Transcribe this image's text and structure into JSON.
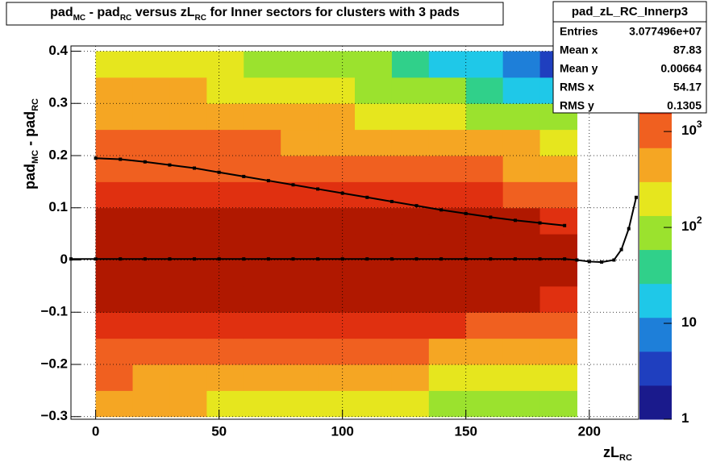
{
  "chart_data": {
    "type": "heatmap",
    "title_parts": [
      "pad",
      "MC",
      " - pad",
      "RC",
      " versus zL",
      "RC",
      " for Inner sectors for clusters with 3 pads"
    ],
    "ylabel_parts": [
      "pad",
      "MC",
      " - pad",
      "RC"
    ],
    "xlabel_parts": [
      "zL",
      "RC"
    ],
    "xlim": [
      -10,
      220
    ],
    "ylim": [
      -0.305,
      0.41
    ],
    "zlim": [
      1,
      7800
    ],
    "xticks": [
      0,
      50,
      100,
      150,
      200
    ],
    "yticks": [
      {
        "value": -0.3,
        "label": "−0.3"
      },
      {
        "value": -0.2,
        "label": "−0.2"
      },
      {
        "value": -0.1,
        "label": "−0.1"
      },
      0,
      0.1,
      0.2,
      0.3,
      0.4
    ],
    "zticks": [
      1,
      10,
      {
        "value": 100,
        "label": "10",
        "sup": "2"
      },
      {
        "value": 1000,
        "label": "10",
        "sup": "3"
      }
    ],
    "grid": true,
    "zscale": "log",
    "palette": [
      "#1a1a8c",
      "#1f3fbf",
      "#1e7fd9",
      "#1fc8e8",
      "#30d08a",
      "#9be22e",
      "#e6e61e",
      "#f5a623",
      "#f06020",
      "#e03010",
      "#b01800"
    ],
    "xbins": [
      0,
      15,
      30,
      45,
      60,
      75,
      90,
      105,
      120,
      135,
      150,
      165,
      180,
      195
    ],
    "ybins": [
      -0.3,
      -0.25,
      -0.2,
      -0.15,
      -0.1,
      -0.05,
      0,
      0.05,
      0.1,
      0.15,
      0.2,
      0.25,
      0.3,
      0.35,
      0.4
    ],
    "counts": [
      [
        400,
        350,
        300,
        280,
        250,
        220,
        200,
        180,
        150,
        130,
        110,
        90,
        70
      ],
      [
        700,
        650,
        600,
        550,
        500,
        450,
        400,
        350,
        300,
        260,
        220,
        180,
        150
      ],
      [
        1200,
        1150,
        1100,
        1000,
        950,
        900,
        850,
        800,
        700,
        650,
        600,
        550,
        500
      ],
      [
        2500,
        2400,
        2300,
        2200,
        2100,
        2000,
        1900,
        1800,
        1700,
        1600,
        1500,
        1400,
        1300
      ],
      [
        4000,
        4000,
        3900,
        3900,
        3800,
        3800,
        3700,
        3700,
        3600,
        3600,
        3500,
        3500,
        3400
      ],
      [
        5000,
        5000,
        5000,
        4900,
        4900,
        4800,
        4800,
        4700,
        4700,
        4600,
        4600,
        4500,
        4500
      ],
      [
        5000,
        5000,
        5000,
        4900,
        4900,
        4800,
        4800,
        4700,
        4700,
        4600,
        4600,
        4500,
        4500
      ],
      [
        4000,
        4000,
        3900,
        3900,
        3800,
        3800,
        3700,
        3700,
        3600,
        3600,
        3500,
        3500,
        3400
      ],
      [
        2800,
        2700,
        2600,
        2400,
        2300,
        2200,
        2000,
        1900,
        1800,
        1700,
        1600,
        1500,
        1400
      ],
      [
        1500,
        1400,
        1350,
        1300,
        1200,
        1100,
        1000,
        900,
        850,
        800,
        700,
        650,
        600
      ],
      [
        900,
        850,
        800,
        750,
        700,
        650,
        600,
        500,
        450,
        400,
        350,
        300,
        250
      ],
      [
        600,
        550,
        500,
        450,
        400,
        350,
        300,
        250,
        200,
        160,
        120,
        90,
        60
      ],
      [
        400,
        350,
        300,
        260,
        220,
        180,
        140,
        110,
        80,
        60,
        40,
        25,
        15
      ],
      [
        250,
        220,
        190,
        160,
        130,
        100,
        80,
        60,
        40,
        25,
        15,
        8,
        4
      ]
    ],
    "series": [
      {
        "color": "#000000",
        "x": [
          0,
          10,
          20,
          30,
          40,
          50,
          60,
          70,
          80,
          90,
          100,
          110,
          120,
          130,
          140,
          150,
          160,
          170,
          180,
          190
        ],
        "values": [
          0.195,
          0.193,
          0.188,
          0.182,
          0.176,
          0.168,
          0.16,
          0.152,
          0.144,
          0.136,
          0.128,
          0.12,
          0.112,
          0.104,
          0.096,
          0.089,
          0.082,
          0.076,
          0.071,
          0.066
        ]
      },
      {
        "color": "#000000",
        "x": [
          -10,
          0,
          10,
          20,
          30,
          40,
          50,
          60,
          70,
          80,
          90,
          100,
          110,
          120,
          130,
          140,
          150,
          160,
          170,
          180,
          190,
          195,
          200,
          205,
          210,
          213,
          216,
          219
        ],
        "values": [
          0.002,
          0.002,
          0.002,
          0.002,
          0.002,
          0.002,
          0.002,
          0.002,
          0.002,
          0.002,
          0.002,
          0.002,
          0.002,
          0.002,
          0.002,
          0.002,
          0.002,
          0.002,
          0.002,
          0.002,
          0.002,
          0.0,
          -0.003,
          -0.004,
          0.0,
          0.02,
          0.06,
          0.12
        ]
      }
    ]
  },
  "stats": {
    "name": "pad_zL_RC_Innerp3",
    "rows": [
      [
        "Entries",
        "3.077496e+07"
      ],
      [
        "Mean x",
        "87.83"
      ],
      [
        "Mean y",
        "0.00664"
      ],
      [
        "RMS x",
        "54.17"
      ],
      [
        "RMS y",
        "0.1305"
      ]
    ]
  }
}
